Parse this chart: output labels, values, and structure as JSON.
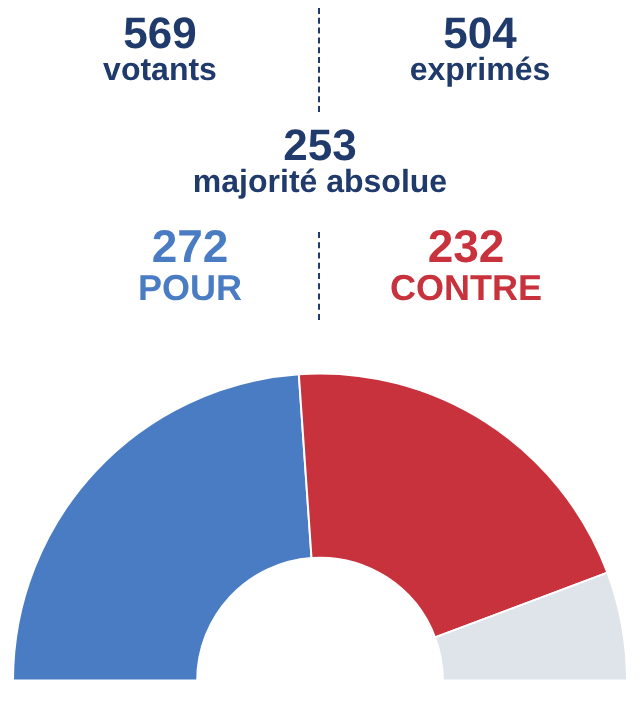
{
  "chart_data": {
    "type": "donut",
    "annotations": [
      "569 votants",
      "504 exprimés",
      "253 majorité absolue"
    ],
    "categories": [
      "POUR",
      "CONTRE",
      null
    ],
    "values": [
      272,
      232,
      65
    ],
    "colors": [
      "#4a7cc4",
      "#c8323c",
      "#dfe4ea"
    ],
    "value_labels": [
      "272",
      "232",
      null
    ],
    "legend": false
  }
}
